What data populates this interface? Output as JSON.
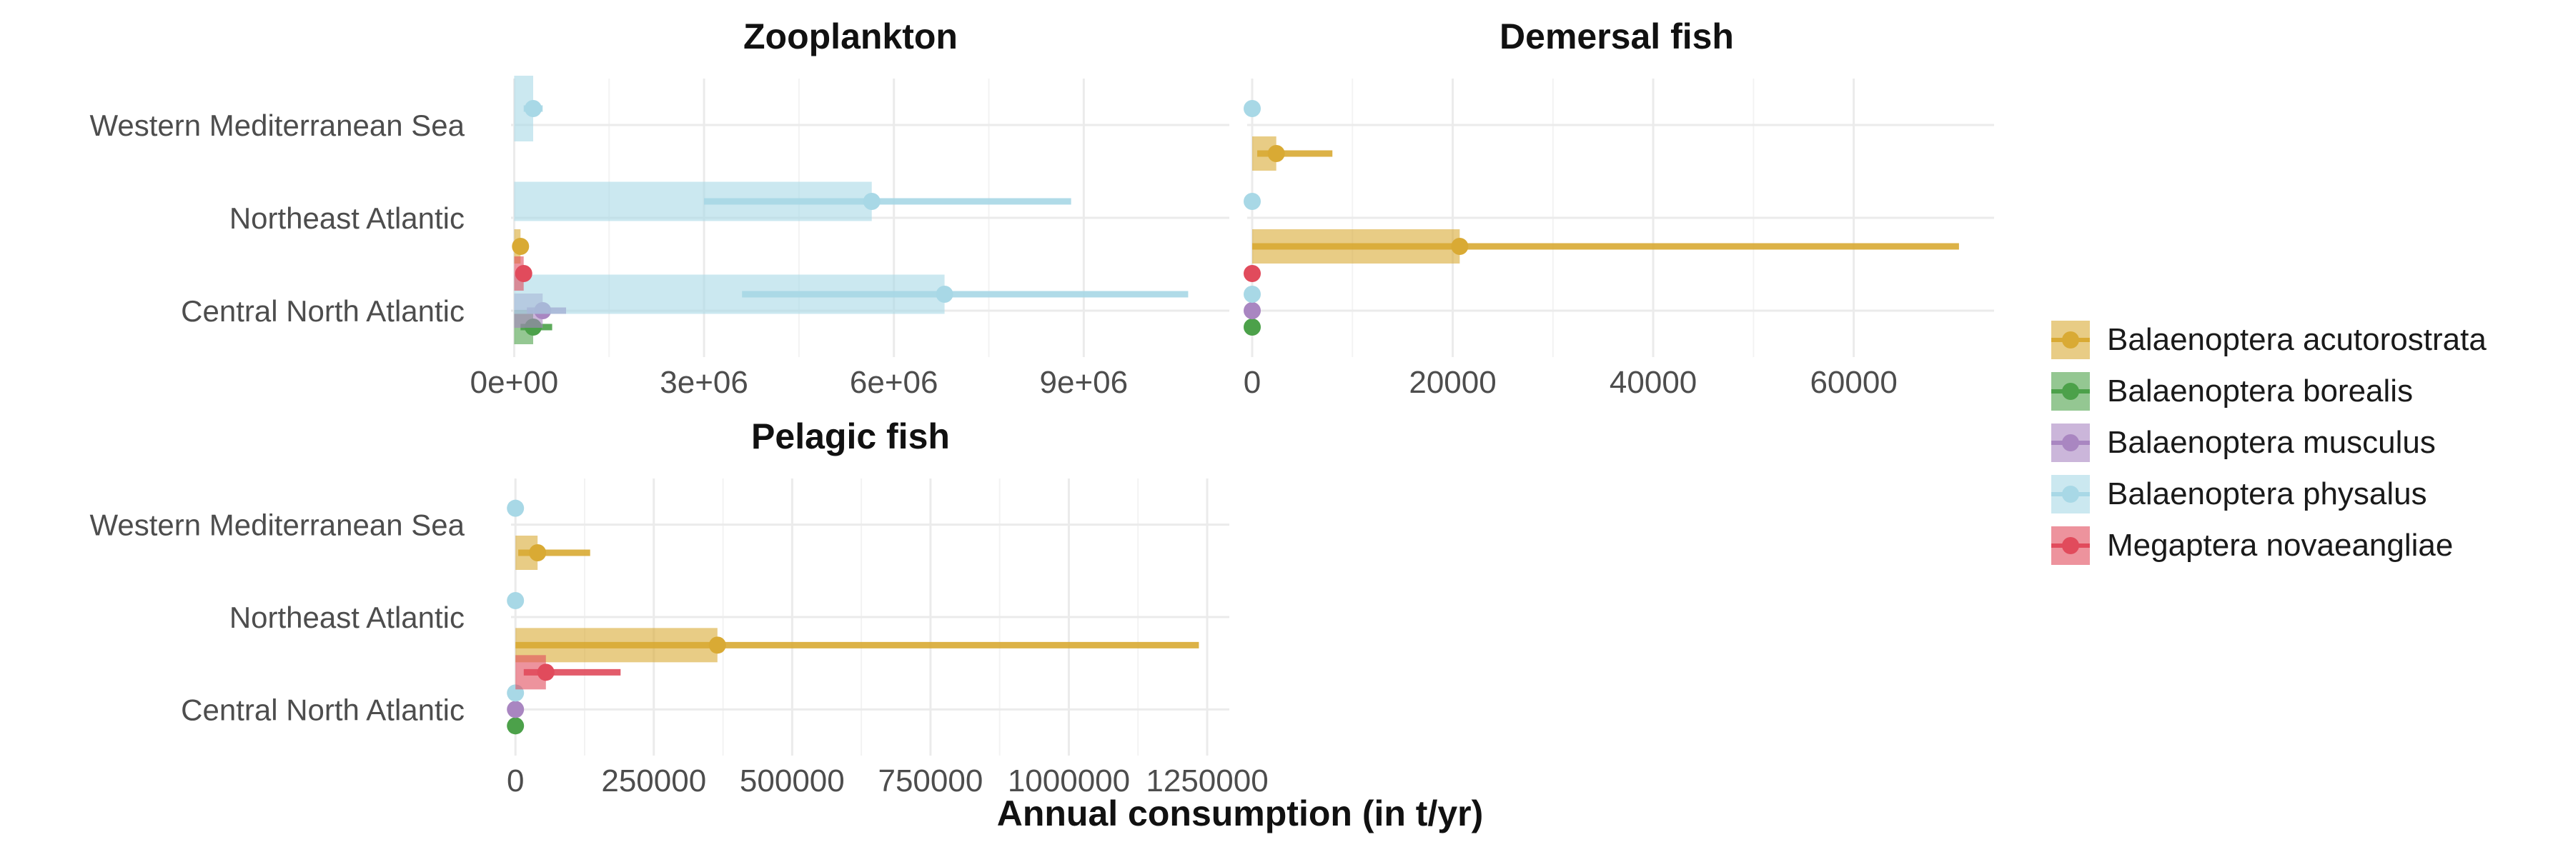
{
  "chart_data": {
    "type": "bar",
    "xlabel": "Annual consumption (in t/yr)",
    "regions": [
      "Western Mediterranean Sea",
      "Northeast Atlantic",
      "Central North Atlantic"
    ],
    "species": [
      {
        "name": "Balaenoptera acutorostrata",
        "color": "#D9AA34"
      },
      {
        "name": "Balaenoptera borealis",
        "color": "#4CA14A"
      },
      {
        "name": "Balaenoptera musculus",
        "color": "#A986C1"
      },
      {
        "name": "Balaenoptera physalus",
        "color": "#A8D8E6"
      },
      {
        "name": "Megaptera novaeangliae",
        "color": "#E14B5C"
      }
    ],
    "panels": [
      {
        "title": "Zooplankton",
        "xlim": [
          -50000,
          11300000
        ],
        "ticks": [
          0,
          3000000,
          6000000,
          9000000
        ],
        "tick_labels": [
          "0e+00",
          "3e+06",
          "6e+06",
          "9e+06"
        ],
        "points": [
          {
            "region": "Western Mediterranean Sea",
            "species": "Balaenoptera physalus",
            "value": 300000,
            "low": 150000,
            "high": 450000
          },
          {
            "region": "Northeast Atlantic",
            "species": "Balaenoptera physalus",
            "value": 5650000,
            "low": 3000000,
            "high": 8800000
          },
          {
            "region": "Central North Atlantic",
            "species": "Balaenoptera acutorostrata",
            "value": 100000,
            "low": 60000,
            "high": 140000
          },
          {
            "region": "Central North Atlantic",
            "species": "Balaenoptera borealis",
            "value": 300000,
            "low": 100000,
            "high": 600000
          },
          {
            "region": "Central North Atlantic",
            "species": "Balaenoptera musculus",
            "value": 450000,
            "low": 200000,
            "high": 820000
          },
          {
            "region": "Central North Atlantic",
            "species": "Balaenoptera physalus",
            "value": 6800000,
            "low": 3600000,
            "high": 10650000
          },
          {
            "region": "Central North Atlantic",
            "species": "Megaptera novaeangliae",
            "value": 150000,
            "low": 80000,
            "high": 260000
          }
        ]
      },
      {
        "title": "Demersal fish",
        "xlim": [
          -500,
          74000
        ],
        "ticks": [
          0,
          20000,
          40000,
          60000
        ],
        "tick_labels": [
          "0",
          "20000",
          "40000",
          "60000"
        ],
        "points": [
          {
            "region": "Western Mediterranean Sea",
            "species": "Balaenoptera physalus",
            "value": 0,
            "low": 0,
            "high": 0
          },
          {
            "region": "Northeast Atlantic",
            "species": "Balaenoptera physalus",
            "value": 0,
            "low": 0,
            "high": 0
          },
          {
            "region": "Northeast Atlantic",
            "species": "Balaenoptera acutorostrata",
            "value": 2400,
            "low": 500,
            "high": 8000
          },
          {
            "region": "Central North Atlantic",
            "species": "Balaenoptera acutorostrata",
            "value": 20700,
            "low": 0,
            "high": 70500
          },
          {
            "region": "Central North Atlantic",
            "species": "Balaenoptera borealis",
            "value": 0,
            "low": 0,
            "high": 0
          },
          {
            "region": "Central North Atlantic",
            "species": "Balaenoptera musculus",
            "value": 0,
            "low": 0,
            "high": 0
          },
          {
            "region": "Central North Atlantic",
            "species": "Balaenoptera physalus",
            "value": 0,
            "low": 0,
            "high": 0
          },
          {
            "region": "Central North Atlantic",
            "species": "Megaptera novaeangliae",
            "value": 0,
            "low": 0,
            "high": 0
          }
        ]
      },
      {
        "title": "Pelagic fish",
        "xlim": [
          -8000,
          1290000
        ],
        "ticks": [
          0,
          250000,
          500000,
          750000,
          1000000,
          1250000
        ],
        "tick_labels": [
          "0",
          "250000",
          "500000",
          "750000",
          "1000000",
          "1250000"
        ],
        "points": [
          {
            "region": "Western Mediterranean Sea",
            "species": "Balaenoptera physalus",
            "value": 0,
            "low": 0,
            "high": 0
          },
          {
            "region": "Northeast Atlantic",
            "species": "Balaenoptera physalus",
            "value": 0,
            "low": 0,
            "high": 0
          },
          {
            "region": "Northeast Atlantic",
            "species": "Balaenoptera acutorostrata",
            "value": 40000,
            "low": 5000,
            "high": 135000
          },
          {
            "region": "Central North Atlantic",
            "species": "Balaenoptera acutorostrata",
            "value": 365000,
            "low": 0,
            "high": 1235000
          },
          {
            "region": "Central North Atlantic",
            "species": "Balaenoptera borealis",
            "value": 0,
            "low": 0,
            "high": 0
          },
          {
            "region": "Central North Atlantic",
            "species": "Balaenoptera musculus",
            "value": 0,
            "low": 0,
            "high": 0
          },
          {
            "region": "Central North Atlantic",
            "species": "Balaenoptera physalus",
            "value": 0,
            "low": 0,
            "high": 0
          },
          {
            "region": "Central North Atlantic",
            "species": "Megaptera novaeangliae",
            "value": 55000,
            "low": 15000,
            "high": 190000
          }
        ]
      }
    ]
  }
}
